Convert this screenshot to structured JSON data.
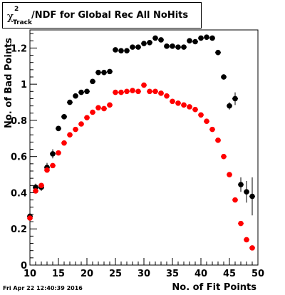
{
  "title": {
    "symbol": "χ",
    "superscript": "2",
    "subscript": "Track",
    "text": "/NDF for Global Rec All NoHits"
  },
  "timestamp": "Fri Apr 22 12:40:39 2016",
  "chart_data": {
    "type": "scatter",
    "xlabel": "No. of Fit Points",
    "ylabel": "No. of Bad Points",
    "xlim": [
      10,
      50
    ],
    "ylim": [
      0,
      1.3
    ],
    "x_ticks": [
      "10",
      "15",
      "20",
      "25",
      "30",
      "35",
      "40",
      "45",
      "50"
    ],
    "y_ticks": [
      "0",
      "0.2",
      "0.4",
      "0.6",
      "0.8",
      "1",
      "1.2"
    ],
    "grid": false,
    "series": [
      {
        "color": "#000000",
        "x": [
          10,
          11,
          12,
          13,
          14,
          15,
          16,
          17,
          18,
          19,
          20,
          21,
          22,
          23,
          24,
          25,
          26,
          27,
          28,
          29,
          30,
          31,
          32,
          33,
          34,
          35,
          36,
          37,
          38,
          39,
          40,
          41,
          42,
          43,
          44,
          45,
          46,
          47,
          48,
          49
        ],
        "y": [
          0.27,
          0.43,
          0.43,
          0.54,
          0.615,
          0.755,
          0.82,
          0.9,
          0.935,
          0.955,
          0.96,
          1.015,
          1.065,
          1.065,
          1.07,
          1.19,
          1.185,
          1.185,
          1.205,
          1.205,
          1.225,
          1.23,
          1.255,
          1.245,
          1.21,
          1.21,
          1.205,
          1.205,
          1.24,
          1.235,
          1.255,
          1.26,
          1.255,
          1.175,
          1.04,
          0.88,
          0.92,
          0.445,
          0.405,
          0.38
        ],
        "err": [
          0.02,
          0.02,
          0.02,
          0.025,
          0.025,
          0.015,
          0.01,
          0.01,
          0.01,
          0.01,
          0.01,
          0.01,
          0.01,
          0.01,
          0.01,
          0.01,
          0.01,
          0.01,
          0.01,
          0.01,
          0.01,
          0.01,
          0.01,
          0.01,
          0.01,
          0.01,
          0.01,
          0.01,
          0.01,
          0.01,
          0.01,
          0.01,
          0.01,
          0.01,
          0.015,
          0.02,
          0.035,
          0.04,
          0.06,
          0.105
        ]
      },
      {
        "color": "#ff0000",
        "x": [
          10,
          11,
          12,
          13,
          14,
          15,
          16,
          17,
          18,
          19,
          20,
          21,
          22,
          23,
          24,
          25,
          26,
          27,
          28,
          29,
          30,
          31,
          32,
          33,
          34,
          35,
          36,
          37,
          38,
          39,
          40,
          41,
          42,
          43,
          44,
          45,
          46,
          47,
          48,
          49
        ],
        "y": [
          0.26,
          0.41,
          0.44,
          0.525,
          0.55,
          0.62,
          0.675,
          0.72,
          0.75,
          0.78,
          0.815,
          0.845,
          0.87,
          0.865,
          0.885,
          0.955,
          0.955,
          0.96,
          0.965,
          0.96,
          0.995,
          0.96,
          0.96,
          0.95,
          0.935,
          0.905,
          0.895,
          0.885,
          0.875,
          0.86,
          0.83,
          0.795,
          0.75,
          0.69,
          0.6,
          0.5,
          0.36,
          0.23,
          0.14,
          0.095
        ]
      }
    ]
  }
}
